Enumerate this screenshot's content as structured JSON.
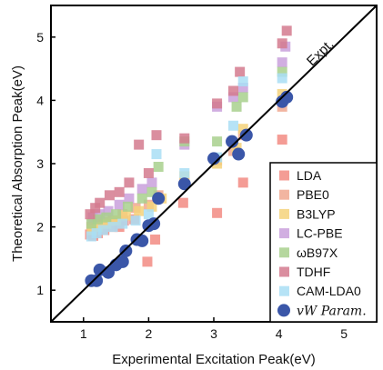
{
  "chart_data": {
    "type": "scatter",
    "xlabel": "Experimental Excitation Peak(eV)",
    "ylabel": "Theoretical Absorption Peak(eV)",
    "xlim": [
      0.5,
      5.5
    ],
    "ylim": [
      0.5,
      5.5
    ],
    "xticks": [
      "1",
      "2",
      "3",
      "4",
      "5"
    ],
    "yticks": [
      "1",
      "2",
      "3",
      "4",
      "5"
    ],
    "grid": false,
    "legend_position": "bottom-right",
    "diagonal_label": "Expt.",
    "series": [
      {
        "name": "LDA",
        "marker": "square",
        "color": "#f28b82",
        "points": [
          [
            1.1,
            1.88
          ],
          [
            1.15,
            1.86
          ],
          [
            1.22,
            1.9
          ],
          [
            1.32,
            1.95
          ],
          [
            1.45,
            2.0
          ],
          [
            1.55,
            2.0
          ],
          [
            1.62,
            2.1
          ],
          [
            1.78,
            2.12
          ],
          [
            1.98,
            1.45
          ],
          [
            2.1,
            1.8
          ],
          [
            2.53,
            2.38
          ],
          [
            3.05,
            2.22
          ],
          [
            3.45,
            2.7
          ],
          [
            4.05,
            3.38
          ]
        ]
      },
      {
        "name": "PBE0",
        "marker": "square",
        "color": "#f0a890",
        "points": [
          [
            1.12,
            2.0
          ],
          [
            1.2,
            2.05
          ],
          [
            1.3,
            2.08
          ],
          [
            1.45,
            2.1
          ],
          [
            1.6,
            2.2
          ],
          [
            1.8,
            2.3
          ],
          [
            2.0,
            2.35
          ],
          [
            2.15,
            2.5
          ],
          [
            2.55,
            2.7
          ],
          [
            3.05,
            3.05
          ],
          [
            3.3,
            3.2
          ],
          [
            3.45,
            3.45
          ],
          [
            4.05,
            3.9
          ]
        ]
      },
      {
        "name": "B3LYP",
        "marker": "square",
        "color": "#f5d27a",
        "points": [
          [
            1.13,
            1.95
          ],
          [
            1.22,
            2.0
          ],
          [
            1.35,
            2.05
          ],
          [
            1.5,
            2.1
          ],
          [
            1.65,
            2.18
          ],
          [
            1.85,
            2.25
          ],
          [
            2.05,
            2.32
          ],
          [
            2.2,
            2.45
          ],
          [
            2.55,
            2.8
          ],
          [
            3.05,
            3.0
          ],
          [
            3.35,
            3.25
          ],
          [
            3.45,
            3.55
          ],
          [
            4.05,
            4.1
          ]
        ]
      },
      {
        "name": "LC-PBE",
        "marker": "square",
        "color": "#c9a0dc",
        "points": [
          [
            1.14,
            2.15
          ],
          [
            1.25,
            2.2
          ],
          [
            1.38,
            2.25
          ],
          [
            1.55,
            2.35
          ],
          [
            1.7,
            2.45
          ],
          [
            1.9,
            2.6
          ],
          [
            2.05,
            2.7
          ],
          [
            2.55,
            3.3
          ],
          [
            3.05,
            3.9
          ],
          [
            3.3,
            4.05
          ],
          [
            3.45,
            4.2
          ],
          [
            4.05,
            4.6
          ],
          [
            4.1,
            4.85
          ]
        ]
      },
      {
        "name": "ωB97X",
        "marker": "square",
        "color": "#a8d08d",
        "points": [
          [
            1.12,
            2.05
          ],
          [
            1.22,
            2.12
          ],
          [
            1.35,
            2.15
          ],
          [
            1.5,
            2.2
          ],
          [
            1.68,
            2.32
          ],
          [
            1.9,
            2.45
          ],
          [
            2.05,
            2.55
          ],
          [
            2.15,
            2.95
          ],
          [
            2.55,
            3.35
          ],
          [
            3.05,
            3.35
          ],
          [
            3.35,
            3.9
          ],
          [
            3.45,
            4.05
          ],
          [
            4.05,
            4.45
          ]
        ]
      },
      {
        "name": "TDHF",
        "marker": "square",
        "color": "#d47a8e",
        "points": [
          [
            1.1,
            2.2
          ],
          [
            1.18,
            2.3
          ],
          [
            1.25,
            2.38
          ],
          [
            1.4,
            2.5
          ],
          [
            1.55,
            2.55
          ],
          [
            1.7,
            2.7
          ],
          [
            1.85,
            3.3
          ],
          [
            2.0,
            2.85
          ],
          [
            2.12,
            3.45
          ],
          [
            2.55,
            3.4
          ],
          [
            3.05,
            3.95
          ],
          [
            3.3,
            4.15
          ],
          [
            3.4,
            4.45
          ],
          [
            4.05,
            4.9
          ],
          [
            4.12,
            5.1
          ]
        ]
      },
      {
        "name": "CAM-LDA0",
        "marker": "square",
        "color": "#a9def5",
        "points": [
          [
            1.12,
            1.85
          ],
          [
            1.2,
            1.9
          ],
          [
            1.3,
            1.95
          ],
          [
            1.45,
            2.0
          ],
          [
            1.6,
            2.05
          ],
          [
            1.8,
            2.1
          ],
          [
            2.0,
            2.2
          ],
          [
            2.12,
            3.15
          ],
          [
            2.55,
            2.85
          ],
          [
            3.05,
            3.1
          ],
          [
            3.3,
            3.6
          ],
          [
            3.45,
            4.3
          ],
          [
            4.05,
            4.35
          ]
        ]
      },
      {
        "name": "vW Param.",
        "marker": "circle",
        "color": "#3a56a8",
        "points": [
          [
            1.12,
            1.15
          ],
          [
            1.2,
            1.15
          ],
          [
            1.25,
            1.32
          ],
          [
            1.38,
            1.28
          ],
          [
            1.5,
            1.4
          ],
          [
            1.6,
            1.45
          ],
          [
            1.65,
            1.62
          ],
          [
            1.82,
            1.8
          ],
          [
            1.9,
            1.78
          ],
          [
            2.0,
            2.02
          ],
          [
            2.08,
            2.05
          ],
          [
            2.15,
            2.45
          ],
          [
            2.55,
            2.68
          ],
          [
            3.0,
            3.08
          ],
          [
            3.28,
            3.35
          ],
          [
            3.38,
            3.15
          ],
          [
            3.5,
            3.45
          ],
          [
            4.05,
            3.98
          ],
          [
            4.12,
            4.05
          ]
        ]
      }
    ]
  }
}
